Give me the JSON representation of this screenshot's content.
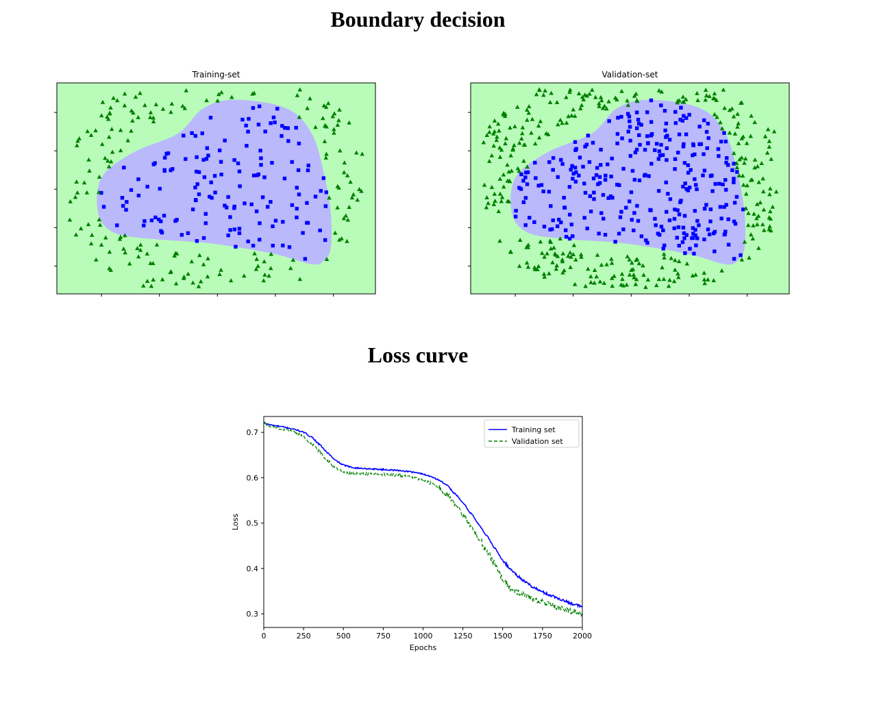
{
  "sections": {
    "boundary_title": "Boundary decision",
    "loss_title": "Loss curve"
  },
  "colors": {
    "background_region": "#b9fcb9",
    "positive_region": "#b9b9fc",
    "square_marker": "#0000ff",
    "triangle_marker": "#008000",
    "training_line": "#0000ff",
    "validation_line": "#008000"
  },
  "chart_data": [
    {
      "type": "scatter",
      "title": "Training-set",
      "xlabel": "",
      "ylabel": "",
      "tick_labels_shown": false,
      "x_ticks": 5,
      "y_ticks": 5,
      "classes": [
        {
          "marker": "square",
          "color": "#0000ff",
          "region": "inside"
        },
        {
          "marker": "triangle",
          "color": "#008000",
          "region": "outside"
        }
      ],
      "n_points_inside": 150,
      "n_points_outside": 180
    },
    {
      "type": "scatter",
      "title": "Validation-set",
      "xlabel": "",
      "ylabel": "",
      "tick_labels_shown": false,
      "x_ticks": 5,
      "y_ticks": 5,
      "classes": [
        {
          "marker": "square",
          "color": "#0000ff",
          "region": "inside"
        },
        {
          "marker": "triangle",
          "color": "#008000",
          "region": "outside"
        }
      ],
      "n_points_inside": 300,
      "n_points_outside": 330
    },
    {
      "type": "line",
      "title": "",
      "xlabel": "Epochs",
      "ylabel": "Loss",
      "xlim": [
        0,
        2000
      ],
      "ylim": [
        0.27,
        0.735
      ],
      "xticks": [
        0,
        250,
        500,
        750,
        1000,
        1250,
        1500,
        1750,
        2000
      ],
      "yticks": [
        0.3,
        0.4,
        0.5,
        0.6,
        0.7
      ],
      "legend_position": "top-right",
      "series": [
        {
          "name": "Training set",
          "style": "solid",
          "color": "#0000ff",
          "x": [
            0,
            50,
            100,
            150,
            200,
            250,
            300,
            350,
            400,
            450,
            500,
            550,
            600,
            650,
            700,
            750,
            800,
            850,
            900,
            950,
            1000,
            1050,
            1100,
            1150,
            1200,
            1250,
            1300,
            1350,
            1400,
            1450,
            1500,
            1550,
            1600,
            1650,
            1700,
            1750,
            1800,
            1850,
            1900,
            1950,
            2000
          ],
          "y": [
            0.72,
            0.716,
            0.713,
            0.71,
            0.706,
            0.7,
            0.69,
            0.673,
            0.655,
            0.638,
            0.628,
            0.623,
            0.621,
            0.62,
            0.619,
            0.618,
            0.617,
            0.616,
            0.614,
            0.612,
            0.608,
            0.603,
            0.595,
            0.583,
            0.565,
            0.545,
            0.522,
            0.497,
            0.472,
            0.445,
            0.418,
            0.398,
            0.382,
            0.368,
            0.357,
            0.348,
            0.341,
            0.334,
            0.327,
            0.321,
            0.315
          ]
        },
        {
          "name": "Validation set",
          "style": "dashed",
          "color": "#008000",
          "x": [
            0,
            50,
            100,
            150,
            200,
            250,
            300,
            350,
            400,
            450,
            500,
            550,
            600,
            650,
            700,
            750,
            800,
            850,
            900,
            950,
            1000,
            1050,
            1100,
            1150,
            1200,
            1250,
            1300,
            1350,
            1400,
            1450,
            1500,
            1550,
            1600,
            1650,
            1700,
            1750,
            1800,
            1850,
            1900,
            1950,
            2000
          ],
          "y": [
            0.72,
            0.714,
            0.709,
            0.705,
            0.7,
            0.69,
            0.675,
            0.658,
            0.638,
            0.622,
            0.612,
            0.609,
            0.608,
            0.608,
            0.608,
            0.607,
            0.606,
            0.605,
            0.603,
            0.599,
            0.595,
            0.588,
            0.578,
            0.563,
            0.542,
            0.518,
            0.493,
            0.465,
            0.44,
            0.41,
            0.378,
            0.357,
            0.347,
            0.34,
            0.332,
            0.325,
            0.319,
            0.313,
            0.308,
            0.304,
            0.3
          ]
        }
      ]
    }
  ]
}
